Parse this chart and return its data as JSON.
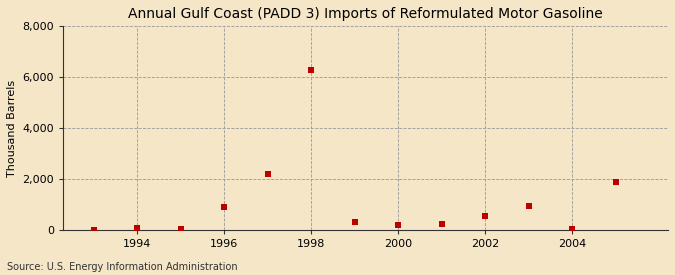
{
  "title": "Annual Gulf Coast (PADD 3) Imports of Reformulated Motor Gasoline",
  "ylabel": "Thousand Barrels",
  "source": "Source: U.S. Energy Information Administration",
  "background_color": "#f5e6c8",
  "plot_background_color": "#f5e6c8",
  "years": [
    1993,
    1994,
    1995,
    1996,
    1997,
    1998,
    1999,
    2000,
    2001,
    2002,
    2003,
    2004,
    2005
  ],
  "values": [
    5,
    55,
    40,
    880,
    2200,
    6280,
    290,
    180,
    230,
    530,
    930,
    20,
    1880
  ],
  "marker_color": "#bb0000",
  "marker_size": 4,
  "ylim": [
    0,
    8000
  ],
  "yticks": [
    0,
    2000,
    4000,
    6000,
    8000
  ],
  "xlim": [
    1992.3,
    2006.2
  ],
  "xtick_positions": [
    1994,
    1996,
    1998,
    2000,
    2002,
    2004
  ],
  "grid_color": "#999999",
  "vgrid_positions": [
    1994,
    1996,
    1998,
    2000,
    2002,
    2004
  ],
  "title_fontsize": 10,
  "ylabel_fontsize": 8,
  "tick_fontsize": 8,
  "source_fontsize": 7
}
